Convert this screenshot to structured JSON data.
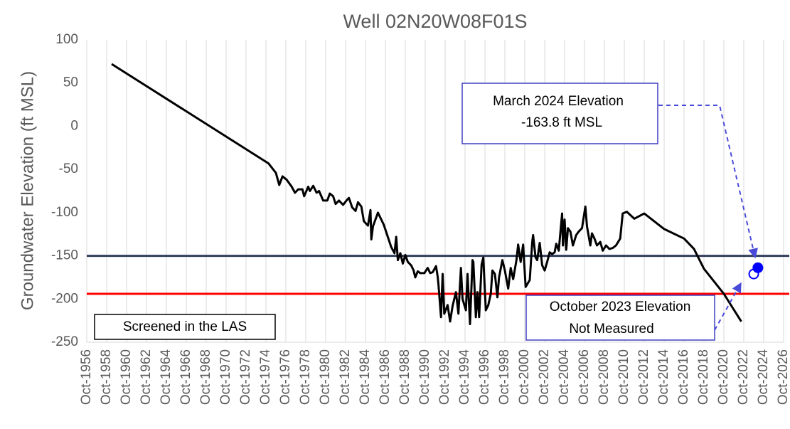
{
  "chart_data": {
    "type": "line",
    "title": "Well 02N20W08F01S",
    "y_label": "Groundwater Elevation (ft MSL)",
    "xlim": [
      "1956-10",
      "2026-10"
    ],
    "ylim": [
      -250,
      100
    ],
    "yticks": [
      100,
      50,
      0,
      -50,
      -100,
      -150,
      -200,
      -250
    ],
    "xticks": [
      {
        "value": "1956-10",
        "label": "Oct-1956"
      },
      {
        "value": "1958-10",
        "label": "Oct-1958"
      },
      {
        "value": "1960-10",
        "label": "Oct-1960"
      },
      {
        "value": "1962-10",
        "label": "Oct-1962"
      },
      {
        "value": "1964-10",
        "label": "Oct-1964"
      },
      {
        "value": "1966-10",
        "label": "Oct-1966"
      },
      {
        "value": "1968-10",
        "label": "Oct-1968"
      },
      {
        "value": "1970-10",
        "label": "Oct-1970"
      },
      {
        "value": "1972-10",
        "label": "Oct-1972"
      },
      {
        "value": "1974-10",
        "label": "Oct-1974"
      },
      {
        "value": "1976-10",
        "label": "Oct-1976"
      },
      {
        "value": "1978-10",
        "label": "Oct-1978"
      },
      {
        "value": "1980-10",
        "label": "Oct-1980"
      },
      {
        "value": "1982-10",
        "label": "Oct-1982"
      },
      {
        "value": "1984-10",
        "label": "Oct-1984"
      },
      {
        "value": "1986-10",
        "label": "Oct-1986"
      },
      {
        "value": "1988-10",
        "label": "Oct-1988"
      },
      {
        "value": "1990-10",
        "label": "Oct-1990"
      },
      {
        "value": "1992-10",
        "label": "Oct-1992"
      },
      {
        "value": "1994-10",
        "label": "Oct-1994"
      },
      {
        "value": "1996-10",
        "label": "Oct-1996"
      },
      {
        "value": "1998-10",
        "label": "Oct-1998"
      },
      {
        "value": "2000-10",
        "label": "Oct-2000"
      },
      {
        "value": "2002-10",
        "label": "Oct-2002"
      },
      {
        "value": "2004-10",
        "label": "Oct-2004"
      },
      {
        "value": "2006-10",
        "label": "Oct-2006"
      },
      {
        "value": "2008-10",
        "label": "Oct-2008"
      },
      {
        "value": "2010-10",
        "label": "Oct-2010"
      },
      {
        "value": "2012-10",
        "label": "Oct-2012"
      },
      {
        "value": "2014-10",
        "label": "Oct-2014"
      },
      {
        "value": "2016-10",
        "label": "Oct-2016"
      },
      {
        "value": "2018-10",
        "label": "Oct-2018"
      },
      {
        "value": "2020-10",
        "label": "Oct-2020"
      },
      {
        "value": "2022-10",
        "label": "Oct-2022"
      },
      {
        "value": "2024-10",
        "label": "Oct-2024"
      },
      {
        "value": "2026-10",
        "label": "Oct-2026"
      }
    ],
    "grid": "x",
    "series": [
      {
        "color": "#000000",
        "x": [
          "1959-04",
          "1975-01",
          "1975-10",
          "1976-02",
          "1976-06",
          "1976-11",
          "1977-05",
          "1977-09",
          "1978-01",
          "1978-06",
          "1978-08",
          "1979-01",
          "1979-03",
          "1979-07",
          "1979-11",
          "1980-02",
          "1980-07",
          "1980-12",
          "1981-03",
          "1981-07",
          "1981-10",
          "1982-02",
          "1982-07",
          "1982-11",
          "1983-02",
          "1983-06",
          "1983-10",
          "1984-01",
          "1984-05",
          "1984-08",
          "1985-01",
          "1985-04",
          "1985-05",
          "1985-07",
          "1986-01",
          "1986-08",
          "1987-05",
          "1987-09",
          "1987-11",
          "1988-01",
          "1988-04",
          "1988-07",
          "1988-10",
          "1989-01",
          "1989-05",
          "1989-08",
          "1989-10",
          "1990-01",
          "1990-04",
          "1990-09",
          "1991-01",
          "1991-04",
          "1991-07",
          "1991-11",
          "1992-01",
          "1992-02",
          "1992-05",
          "1992-07",
          "1992-09",
          "1993-01",
          "1993-04",
          "1993-07",
          "1993-11",
          "1994-02",
          "1994-05",
          "1994-07",
          "1994-11",
          "1995-01",
          "1995-04",
          "1995-07",
          "1995-08",
          "1995-11",
          "1996-01",
          "1996-03",
          "1996-06",
          "1996-08",
          "1996-11",
          "1997-02",
          "1997-05",
          "1997-07",
          "1997-10",
          "1998-01",
          "1998-03",
          "1998-07",
          "1998-10",
          "1999-02",
          "1999-05",
          "1999-08",
          "1999-12",
          "2000-02",
          "2000-05",
          "2000-08",
          "2000-11",
          "2001-04",
          "2001-07",
          "2001-08",
          "2001-11",
          "2002-01",
          "2002-04",
          "2002-07",
          "2002-10",
          "2003-01",
          "2003-04",
          "2003-07",
          "2003-10",
          "2003-12",
          "2004-03",
          "2004-07",
          "2004-08",
          "2004-10",
          "2004-12",
          "2005-02",
          "2005-05",
          "2005-08",
          "2005-12",
          "2006-03",
          "2006-07",
          "2006-11",
          "2007-01",
          "2007-05",
          "2007-07",
          "2007-10",
          "2008-01",
          "2008-05",
          "2008-08",
          "2008-12",
          "2009-04",
          "2009-08",
          "2009-12",
          "2010-05",
          "2010-08",
          "2011-01",
          "2011-10",
          "2012-10",
          "2014-10",
          "2016-10",
          "2017-10",
          "2018-10",
          "2020-10",
          "2022-07"
        ],
        "values": [
          72,
          -43,
          -54,
          -68,
          -58,
          -62,
          -70,
          -77,
          -73,
          -73,
          -81,
          -70,
          -75,
          -69,
          -77,
          -75,
          -86,
          -86,
          -78,
          -81,
          -90,
          -86,
          -91,
          -86,
          -83,
          -94,
          -98,
          -88,
          -93,
          -110,
          -115,
          -97,
          -131,
          -116,
          -100,
          -114,
          -140,
          -147,
          -128,
          -155,
          -147,
          -159,
          -149,
          -157,
          -161,
          -167,
          -175,
          -168,
          -170,
          -170,
          -164,
          -170,
          -169,
          -162,
          -174,
          -184,
          -221,
          -171,
          -217,
          -207,
          -226,
          -208,
          -192,
          -217,
          -164,
          -200,
          -213,
          -171,
          -229,
          -155,
          -157,
          -221,
          -192,
          -221,
          -160,
          -152,
          -213,
          -207,
          -194,
          -167,
          -171,
          -198,
          -175,
          -155,
          -167,
          -188,
          -164,
          -177,
          -155,
          -137,
          -157,
          -137,
          -186,
          -178,
          -134,
          -126,
          -152,
          -155,
          -135,
          -161,
          -167,
          -157,
          -146,
          -148,
          -146,
          -136,
          -144,
          -101,
          -138,
          -108,
          -143,
          -118,
          -122,
          -138,
          -126,
          -122,
          -118,
          -93,
          -116,
          -138,
          -124,
          -130,
          -138,
          -134,
          -144,
          -138,
          -142,
          -141,
          -138,
          -130,
          -101,
          -99,
          -107,
          -101,
          -119,
          -130,
          -142,
          -165,
          -194,
          -226
        ]
      }
    ],
    "markers": [
      {
        "x": "2023-10",
        "value": -171,
        "filled": false,
        "color": "#0000ff"
      },
      {
        "x": "2024-03",
        "value": -163.8,
        "filled": true,
        "color": "#0000ff"
      }
    ],
    "reference_lines": [
      {
        "value": -150,
        "color": "#333f5c"
      },
      {
        "value": -194,
        "color": "#ff0000"
      }
    ],
    "annotations": [
      {
        "lines": [
          "March 2024 Elevation",
          "-163.8  ft MSL"
        ]
      },
      {
        "lines": [
          "October 2023 Elevation",
          "Not Measured"
        ]
      },
      {
        "lines": [
          "Screened in the LAS"
        ]
      }
    ]
  }
}
